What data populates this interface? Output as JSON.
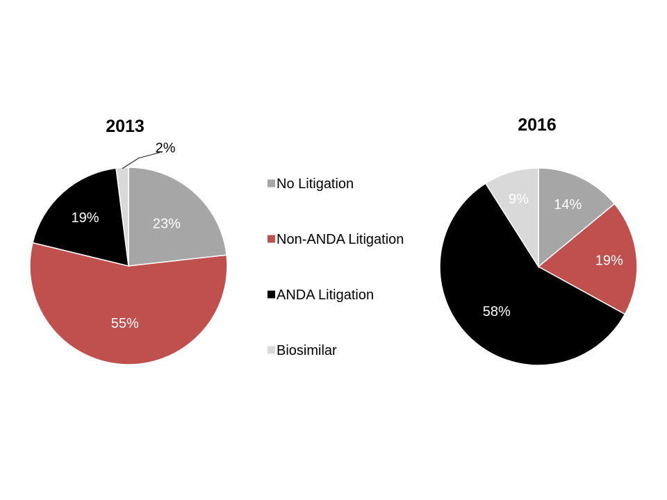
{
  "chart_data": [
    {
      "type": "pie",
      "title": "2013",
      "slices": [
        {
          "name": "No Litigation",
          "value": 23,
          "label": "23%"
        },
        {
          "name": "Non-ANDA Litigation",
          "value": 55,
          "label": "55%"
        },
        {
          "name": "ANDA Litigation",
          "value": 19,
          "label": "19%"
        },
        {
          "name": "Biosimilar",
          "value": 2,
          "label": "2%"
        }
      ]
    },
    {
      "type": "pie",
      "title": "2016",
      "slices": [
        {
          "name": "No Litigation",
          "value": 14,
          "label": "14%"
        },
        {
          "name": "Non-ANDA Litigation",
          "value": 19,
          "label": "19%"
        },
        {
          "name": "ANDA Litigation",
          "value": 58,
          "label": "58%"
        },
        {
          "name": "Biosimilar",
          "value": 9,
          "label": "9%"
        }
      ]
    }
  ],
  "legend": {
    "placement": "center",
    "items": [
      {
        "name": "No Litigation",
        "color": "#A6A6A6"
      },
      {
        "name": "Non-ANDA Litigation",
        "color": "#C0504D"
      },
      {
        "name": "ANDA Litigation",
        "color": "#000000"
      },
      {
        "name": "Biosimilar",
        "color": "#D9D9D9"
      }
    ]
  },
  "colors": {
    "No Litigation": "#A6A6A6",
    "Non-ANDA Litigation": "#C0504D",
    "ANDA Litigation": "#000000",
    "Biosimilar": "#D9D9D9"
  }
}
